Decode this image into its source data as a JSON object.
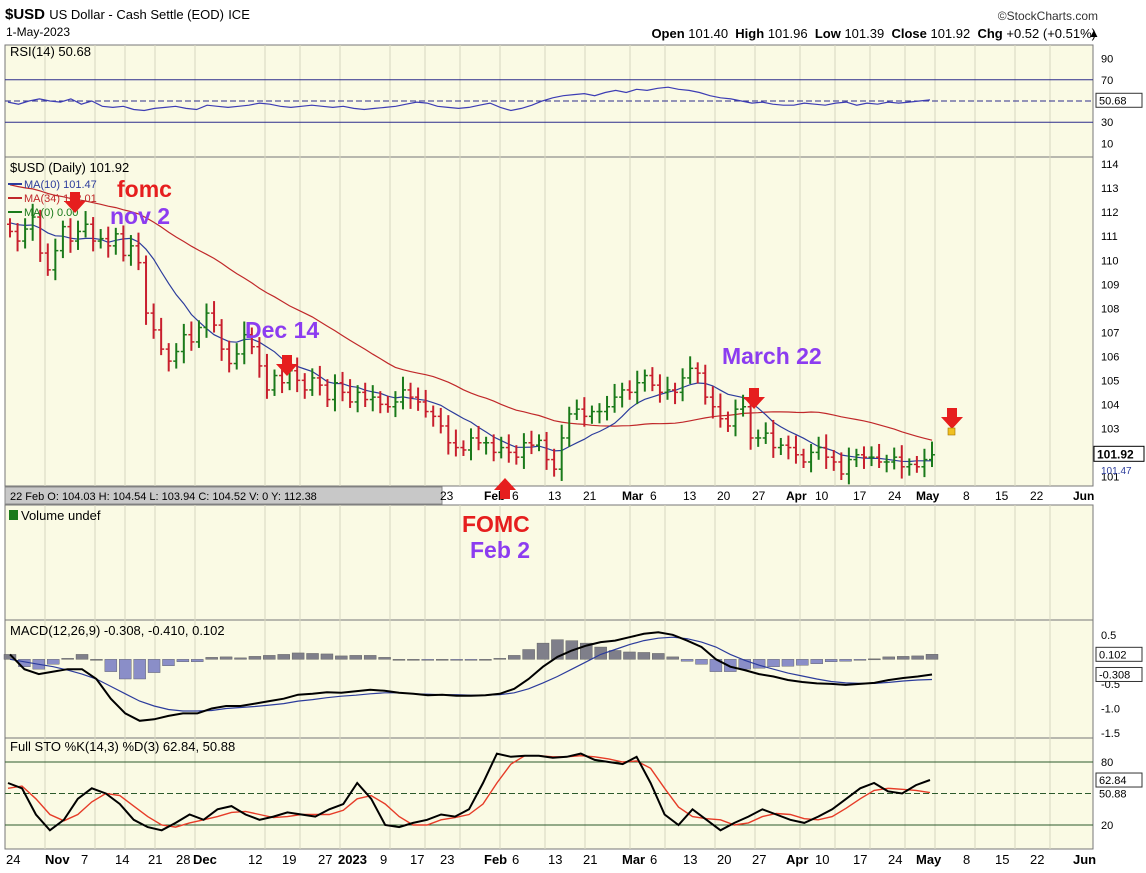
{
  "header": {
    "symbol": "$USD",
    "name": "US Dollar - Cash Settle (EOD)",
    "exchange": "ICE",
    "date": "1-May-2023",
    "watermark": "©StockCharts.com",
    "ohlc": {
      "open_label": "Open",
      "open": "101.40",
      "high_label": "High",
      "high": "101.96",
      "low_label": "Low",
      "low": "101.39",
      "close_label": "Close",
      "close": "101.92",
      "chg_label": "Chg",
      "chg": "+0.52 (+0.51%)"
    }
  },
  "colors": {
    "panel_bg": "#fafae4",
    "grid": "#d7d7c0",
    "up_bar": "#1a7a1a",
    "down_bar": "#c81e2d",
    "ma10": "#2c3c9c",
    "ma34": "#c0282a",
    "annotation_red": "#e61e1e",
    "annotation_purple": "#8c3cf0",
    "macd_hist": "#8a8ec8",
    "rsi_line": "#3d3db4"
  },
  "chart_data": [
    {
      "type": "line",
      "panel": "rsi",
      "title": "RSI(14) 50.68",
      "series": [
        {
          "name": "RSI(14)",
          "last": 50.68
        }
      ],
      "y_ticks": [
        90,
        70,
        50,
        30,
        10
      ],
      "overbought": 70,
      "oversold": 30,
      "last_label": "50.68",
      "values_approx": [
        49,
        47,
        50,
        52,
        50,
        49,
        52,
        47,
        50,
        45,
        44,
        45,
        42,
        41,
        43,
        44,
        45,
        43,
        42,
        46,
        45,
        44,
        45,
        46,
        48,
        47,
        45,
        44,
        45,
        46,
        45,
        44,
        45,
        43,
        42,
        43,
        44,
        45,
        47,
        49,
        48,
        45,
        44,
        43,
        44,
        46,
        48,
        44,
        41,
        43,
        46,
        50,
        53,
        55,
        56,
        57,
        55,
        58,
        60,
        58,
        61,
        60,
        62,
        63,
        61,
        60,
        58,
        55,
        53,
        52,
        50,
        48,
        49,
        47,
        46,
        46,
        48,
        47,
        46,
        48,
        49,
        46,
        48,
        47,
        49,
        48,
        49,
        50,
        51
      ]
    },
    {
      "type": "ohlc",
      "panel": "price",
      "title": "$USD (Daily) 101.92",
      "legend": [
        {
          "name": "MA(10)",
          "value": "101.47"
        },
        {
          "name": "MA(34)",
          "value": "102.01"
        },
        {
          "name": "MA(0)",
          "value": "0.00"
        }
      ],
      "ylim": [
        100.6,
        114.3
      ],
      "y_ticks": [
        114,
        113,
        112,
        111,
        110,
        109,
        108,
        107,
        106,
        105,
        104,
        103,
        101
      ],
      "last_close_label": "101.92",
      "ma10_label": "101.47",
      "hover_text": "22 Feb O: 104.03  H: 104.54  L: 103.94  C: 104.52  V: 0  Y: 112.38",
      "x_tick_labels_top": [
        "23",
        "Feb",
        "6",
        "13",
        "21",
        "Mar",
        "6",
        "13",
        "20",
        "27",
        "Apr",
        "10",
        "17",
        "24",
        "May",
        "8",
        "15",
        "22",
        "Jun"
      ],
      "closes_approx": [
        111.2,
        110.8,
        111.3,
        111.8,
        110.3,
        109.6,
        110.4,
        111.4,
        110.8,
        111.2,
        111.5,
        110.8,
        110.9,
        110.6,
        111.1,
        110.2,
        110.6,
        109.9,
        107.8,
        107.1,
        106.3,
        105.8,
        106.2,
        106.9,
        106.6,
        107.2,
        107.8,
        107.3,
        106.3,
        105.7,
        106.1,
        106.9,
        106.4,
        105.6,
        104.6,
        105.2,
        104.9,
        105.4,
        105.0,
        104.6,
        105.1,
        104.8,
        104.2,
        104.9,
        104.5,
        104.1,
        104.5,
        104.2,
        104.3,
        104.0,
        103.9,
        104.1,
        104.6,
        104.3,
        104.1,
        103.7,
        103.5,
        103.1,
        102.4,
        102.2,
        102.1,
        102.6,
        102.4,
        102.4,
        102.0,
        102.2,
        102.0,
        101.8,
        102.4,
        102.3,
        102.5,
        101.7,
        101.3,
        102.6,
        103.6,
        103.8,
        103.5,
        103.7,
        103.7,
        103.9,
        104.3,
        104.6,
        104.5,
        104.9,
        105.2,
        104.8,
        104.5,
        104.6,
        104.5,
        105.1,
        105.5,
        105.3,
        104.3,
        103.9,
        103.4,
        103.1,
        103.8,
        103.9,
        102.6,
        102.6,
        102.8,
        102.2,
        102.3,
        102.2,
        101.9,
        101.6,
        102.0,
        102.2,
        101.8,
        101.6,
        101.1,
        101.7,
        101.9,
        101.8,
        101.8,
        101.6,
        101.6,
        101.8,
        101.4,
        101.5,
        101.4,
        101.7,
        101.9
      ],
      "annotations": [
        {
          "text": "fomc",
          "color": "red"
        },
        {
          "text": "nov 2",
          "color": "purple"
        },
        {
          "text": "Dec 14",
          "color": "purple"
        },
        {
          "text": "FOMC",
          "color": "red"
        },
        {
          "text": "Feb 2",
          "color": "purple"
        },
        {
          "text": "March 22",
          "color": "purple"
        }
      ]
    },
    {
      "type": "bar",
      "panel": "volume",
      "title": "Volume undef"
    },
    {
      "type": "line",
      "panel": "macd",
      "title": "MACD(12,26,9) -0.308, -0.410, 0.102",
      "series": [
        {
          "name": "MACD",
          "last": -0.308
        },
        {
          "name": "Signal",
          "last": -0.41
        },
        {
          "name": "Histogram",
          "last": 0.102
        }
      ],
      "y_ticks": [
        "0.5",
        "-0.5",
        "-1.0",
        "-1.5"
      ],
      "hist_label": "0.102",
      "macd_label": "-0.308",
      "ylim": [
        -1.6,
        0.8
      ],
      "macd_approx": [
        0.1,
        -0.2,
        -0.3,
        -0.25,
        -0.2,
        -0.2,
        -0.4,
        -0.8,
        -1.1,
        -1.25,
        -1.22,
        -1.15,
        -1.1,
        -1.1,
        -1.0,
        -0.95,
        -0.95,
        -0.9,
        -0.85,
        -0.8,
        -0.72,
        -0.7,
        -0.67,
        -0.68,
        -0.65,
        -0.62,
        -0.64,
        -0.68,
        -0.7,
        -0.73,
        -0.72,
        -0.74,
        -0.74,
        -0.73,
        -0.7,
        -0.6,
        -0.4,
        -0.15,
        0.05,
        0.18,
        0.28,
        0.35,
        0.38,
        0.45,
        0.52,
        0.55,
        0.5,
        0.38,
        0.25,
        0.0,
        -0.15,
        -0.22,
        -0.3,
        -0.35,
        -0.42,
        -0.46,
        -0.49,
        -0.5,
        -0.52,
        -0.5,
        -0.48,
        -0.42,
        -0.38,
        -0.35,
        -0.308
      ],
      "signal_approx": [
        0.0,
        -0.05,
        -0.1,
        -0.15,
        -0.22,
        -0.3,
        -0.4,
        -0.55,
        -0.7,
        -0.85,
        -0.95,
        -1.02,
        -1.05,
        -1.05,
        -1.04,
        -1.0,
        -0.98,
        -0.96,
        -0.93,
        -0.9,
        -0.85,
        -0.82,
        -0.78,
        -0.75,
        -0.73,
        -0.7,
        -0.68,
        -0.68,
        -0.7,
        -0.71,
        -0.72,
        -0.72,
        -0.73,
        -0.73,
        -0.72,
        -0.68,
        -0.6,
        -0.48,
        -0.35,
        -0.2,
        -0.05,
        0.1,
        0.2,
        0.3,
        0.38,
        0.43,
        0.45,
        0.42,
        0.35,
        0.25,
        0.1,
        -0.02,
        -0.12,
        -0.2,
        -0.28,
        -0.34,
        -0.4,
        -0.45,
        -0.48,
        -0.49,
        -0.49,
        -0.47,
        -0.44,
        -0.42,
        -0.41
      ]
    },
    {
      "type": "line",
      "panel": "stochastic",
      "title": "Full STO %K(14,3) %D(3) 62.84, 50.88",
      "series": [
        {
          "name": "%K",
          "last": 62.84
        },
        {
          "name": "%D",
          "last": 50.88
        }
      ],
      "y_ticks": [
        80,
        20
      ],
      "k_label": "62.84",
      "d_label": "50.88",
      "k_approx": [
        60,
        55,
        30,
        15,
        25,
        45,
        55,
        50,
        40,
        25,
        18,
        15,
        22,
        30,
        25,
        35,
        38,
        30,
        25,
        28,
        32,
        30,
        28,
        35,
        40,
        60,
        45,
        20,
        18,
        22,
        25,
        30,
        28,
        35,
        60,
        88,
        85,
        86,
        86,
        84,
        85,
        88,
        82,
        80,
        78,
        85,
        60,
        30,
        20,
        35,
        25,
        15,
        22,
        28,
        35,
        30,
        25,
        22,
        28,
        35,
        45,
        55,
        60,
        52,
        50,
        58,
        62.84
      ],
      "d_approx": [
        55,
        57,
        45,
        30,
        24,
        30,
        42,
        50,
        48,
        38,
        28,
        20,
        18,
        22,
        25,
        28,
        32,
        33,
        30,
        27,
        28,
        30,
        30,
        30,
        34,
        45,
        48,
        40,
        28,
        20,
        20,
        25,
        27,
        30,
        40,
        60,
        78,
        86,
        86,
        85,
        85,
        86,
        85,
        83,
        80,
        81,
        74,
        55,
        37,
        28,
        26,
        25,
        20,
        22,
        28,
        31,
        30,
        26,
        25,
        28,
        36,
        45,
        53,
        55,
        54,
        53,
        50.88
      ]
    }
  ],
  "x_axis": {
    "labels": [
      "24",
      "Nov",
      "7",
      "14",
      "21",
      "28",
      "Dec",
      "12",
      "19",
      "27",
      "2023",
      "9",
      "17",
      "23",
      "Feb",
      "6",
      "13",
      "21",
      "Mar",
      "6",
      "13",
      "20",
      "27",
      "Apr",
      "10",
      "17",
      "24",
      "May",
      "8",
      "15",
      "22",
      "Jun"
    ]
  }
}
